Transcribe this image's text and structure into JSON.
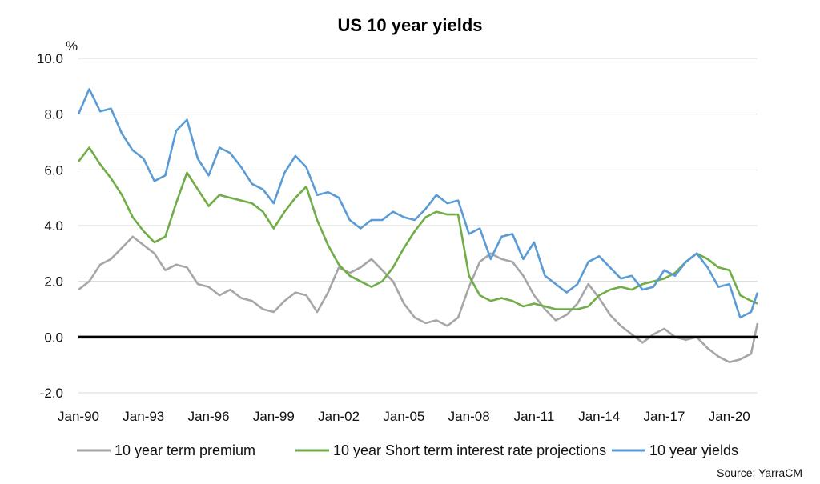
{
  "chart_data": {
    "type": "line",
    "title": "US 10 year yields",
    "ylabel": "%",
    "ylim": [
      -2.0,
      10.0
    ],
    "yticks": [
      "10.0",
      "8.0",
      "6.0",
      "4.0",
      "2.0",
      "0.0",
      "-2.0"
    ],
    "ytick_values": [
      10,
      8,
      6,
      4,
      2,
      0,
      -2
    ],
    "xticks": [
      "Jan-90",
      "Jan-93",
      "Jan-96",
      "Jan-99",
      "Jan-02",
      "Jan-05",
      "Jan-08",
      "Jan-11",
      "Jan-14",
      "Jan-17",
      "Jan-20"
    ],
    "xtick_years": [
      1990,
      1993,
      1996,
      1999,
      2002,
      2005,
      2008,
      2011,
      2014,
      2017,
      2020
    ],
    "xlim": [
      1990.0,
      2021.3
    ],
    "grid": "horizontal",
    "legend_position": "bottom",
    "source": "Source: YarraCM",
    "series": [
      {
        "name": "10 year term premium",
        "color": "#a6a6a6",
        "x": [
          1990.0,
          1990.5,
          1991.0,
          1991.5,
          1992.0,
          1992.5,
          1993.0,
          1993.5,
          1994.0,
          1994.5,
          1995.0,
          1995.5,
          1996.0,
          1996.5,
          1997.0,
          1997.5,
          1998.0,
          1998.5,
          1999.0,
          1999.5,
          2000.0,
          2000.5,
          2001.0,
          2001.5,
          2002.0,
          2002.5,
          2003.0,
          2003.5,
          2004.0,
          2004.5,
          2005.0,
          2005.5,
          2006.0,
          2006.5,
          2007.0,
          2007.5,
          2008.0,
          2008.5,
          2009.0,
          2009.5,
          2010.0,
          2010.5,
          2011.0,
          2011.5,
          2012.0,
          2012.5,
          2013.0,
          2013.5,
          2014.0,
          2014.5,
          2015.0,
          2015.5,
          2016.0,
          2016.5,
          2017.0,
          2017.5,
          2018.0,
          2018.5,
          2019.0,
          2019.5,
          2020.0,
          2020.5,
          2021.0,
          2021.3
        ],
        "y": [
          1.7,
          2.0,
          2.6,
          2.8,
          3.2,
          3.6,
          3.3,
          3.0,
          2.4,
          2.6,
          2.5,
          1.9,
          1.8,
          1.5,
          1.7,
          1.4,
          1.3,
          1.0,
          0.9,
          1.3,
          1.6,
          1.5,
          0.9,
          1.6,
          2.5,
          2.3,
          2.5,
          2.8,
          2.4,
          2.0,
          1.2,
          0.7,
          0.5,
          0.6,
          0.4,
          0.7,
          1.8,
          2.7,
          3.0,
          2.8,
          2.7,
          2.2,
          1.5,
          1.0,
          0.6,
          0.8,
          1.2,
          1.9,
          1.4,
          0.8,
          0.4,
          0.1,
          -0.2,
          0.1,
          0.3,
          0.0,
          -0.1,
          0.0,
          -0.4,
          -0.7,
          -0.9,
          -0.8,
          -0.6,
          0.5
        ]
      },
      {
        "name": "10 year Short term interest rate projections",
        "color": "#70ad47",
        "x": [
          1990.0,
          1990.5,
          1991.0,
          1991.5,
          1992.0,
          1992.5,
          1993.0,
          1993.5,
          1994.0,
          1994.5,
          1995.0,
          1995.5,
          1996.0,
          1996.5,
          1997.0,
          1997.5,
          1998.0,
          1998.5,
          1999.0,
          1999.5,
          2000.0,
          2000.5,
          2001.0,
          2001.5,
          2002.0,
          2002.5,
          2003.0,
          2003.5,
          2004.0,
          2004.5,
          2005.0,
          2005.5,
          2006.0,
          2006.5,
          2007.0,
          2007.5,
          2008.0,
          2008.5,
          2009.0,
          2009.5,
          2010.0,
          2010.5,
          2011.0,
          2011.5,
          2012.0,
          2012.5,
          2013.0,
          2013.5,
          2014.0,
          2014.5,
          2015.0,
          2015.5,
          2016.0,
          2016.5,
          2017.0,
          2017.5,
          2018.0,
          2018.5,
          2019.0,
          2019.5,
          2020.0,
          2020.5,
          2021.0,
          2021.3
        ],
        "y": [
          6.3,
          6.8,
          6.2,
          5.7,
          5.1,
          4.3,
          3.8,
          3.4,
          3.6,
          4.8,
          5.9,
          5.3,
          4.7,
          5.1,
          5.0,
          4.9,
          4.8,
          4.5,
          3.9,
          4.5,
          5.0,
          5.4,
          4.2,
          3.3,
          2.6,
          2.2,
          2.0,
          1.8,
          2.0,
          2.5,
          3.2,
          3.8,
          4.3,
          4.5,
          4.4,
          4.4,
          2.2,
          1.5,
          1.3,
          1.4,
          1.3,
          1.1,
          1.2,
          1.1,
          1.0,
          1.0,
          1.0,
          1.1,
          1.5,
          1.7,
          1.8,
          1.7,
          1.9,
          2.0,
          2.1,
          2.3,
          2.7,
          3.0,
          2.8,
          2.5,
          2.4,
          1.5,
          1.3,
          1.2
        ]
      },
      {
        "name": "10 year yields",
        "color": "#5b9bd5",
        "x": [
          1990.0,
          1990.5,
          1991.0,
          1991.5,
          1992.0,
          1992.5,
          1993.0,
          1993.5,
          1994.0,
          1994.5,
          1995.0,
          1995.5,
          1996.0,
          1996.5,
          1997.0,
          1997.5,
          1998.0,
          1998.5,
          1999.0,
          1999.5,
          2000.0,
          2000.5,
          2001.0,
          2001.5,
          2002.0,
          2002.5,
          2003.0,
          2003.5,
          2004.0,
          2004.5,
          2005.0,
          2005.5,
          2006.0,
          2006.5,
          2007.0,
          2007.5,
          2008.0,
          2008.5,
          2009.0,
          2009.5,
          2010.0,
          2010.5,
          2011.0,
          2011.5,
          2012.0,
          2012.5,
          2013.0,
          2013.5,
          2014.0,
          2014.5,
          2015.0,
          2015.5,
          2016.0,
          2016.5,
          2017.0,
          2017.5,
          2018.0,
          2018.5,
          2019.0,
          2019.5,
          2020.0,
          2020.5,
          2021.0,
          2021.3
        ],
        "y": [
          8.0,
          8.9,
          8.1,
          8.2,
          7.3,
          6.7,
          6.4,
          5.6,
          5.8,
          7.4,
          7.8,
          6.4,
          5.8,
          6.8,
          6.6,
          6.1,
          5.5,
          5.3,
          4.8,
          5.9,
          6.5,
          6.1,
          5.1,
          5.2,
          5.0,
          4.2,
          3.9,
          4.2,
          4.2,
          4.5,
          4.3,
          4.2,
          4.6,
          5.1,
          4.8,
          4.9,
          3.7,
          3.9,
          2.8,
          3.6,
          3.7,
          2.8,
          3.4,
          2.2,
          1.9,
          1.6,
          1.9,
          2.7,
          2.9,
          2.5,
          2.1,
          2.2,
          1.7,
          1.8,
          2.4,
          2.2,
          2.7,
          3.0,
          2.5,
          1.8,
          1.9,
          0.7,
          0.9,
          1.6
        ]
      }
    ]
  }
}
